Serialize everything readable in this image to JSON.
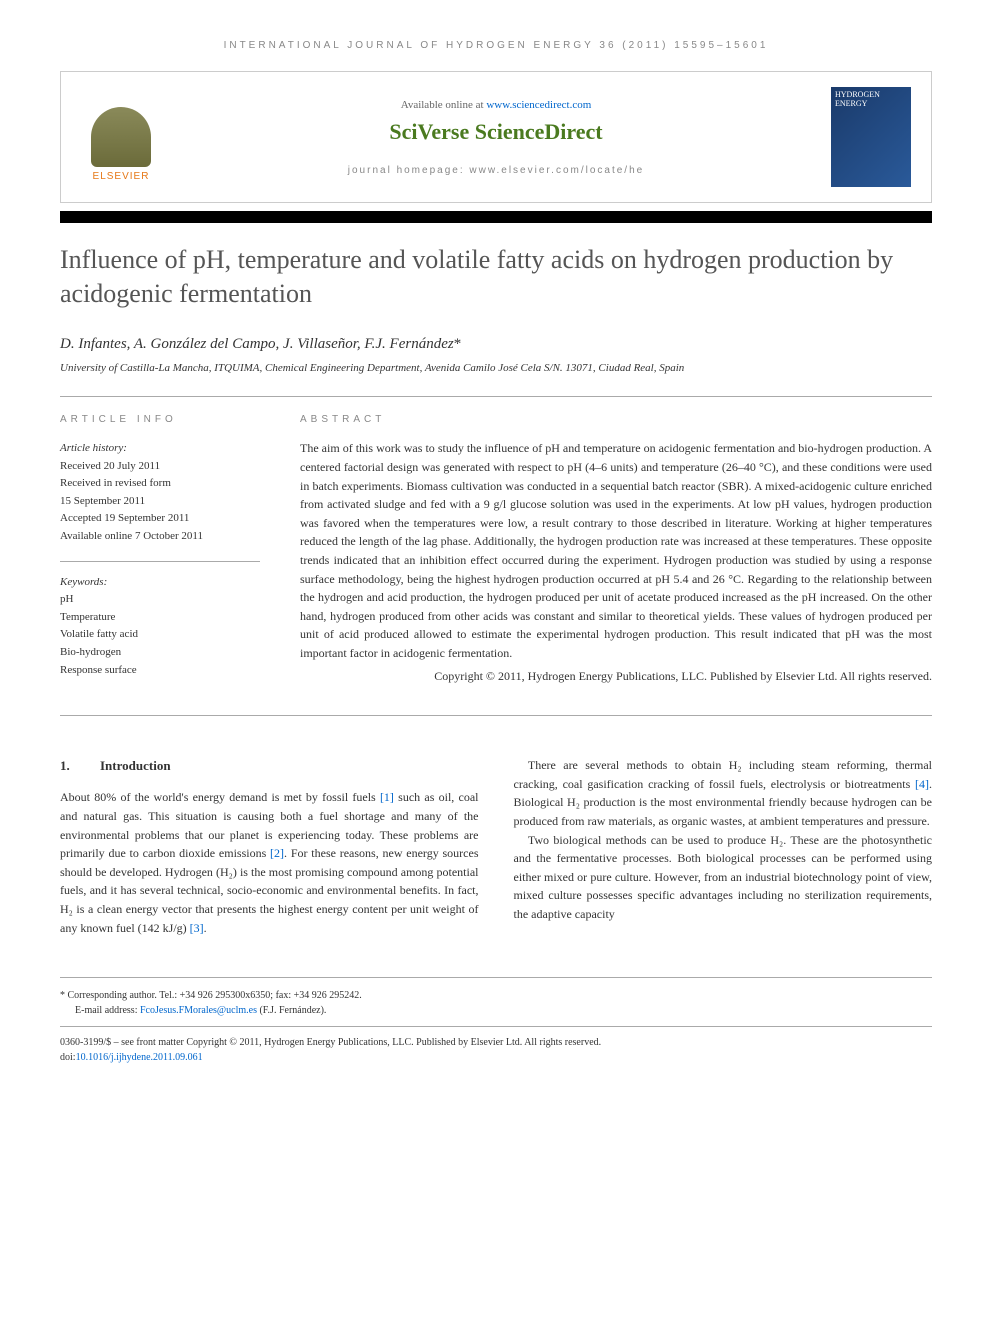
{
  "running_header": "INTERNATIONAL JOURNAL OF HYDROGEN ENERGY 36 (2011) 15595–15601",
  "header": {
    "available_prefix": "Available online at ",
    "available_link": "www.sciencedirect.com",
    "logo_text": "SciVerse ScienceDirect",
    "homepage_label": "journal homepage: www.elsevier.com/locate/he",
    "elsevier_label": "ELSEVIER",
    "cover_title": "HYDROGEN ENERGY"
  },
  "title": "Influence of pH, temperature and volatile fatty acids on hydrogen production by acidogenic fermentation",
  "authors": "D. Infantes, A. González del Campo, J. Villaseñor, F.J. Fernández",
  "corresponding_marker": "*",
  "affiliation": "University of Castilla-La Mancha, ITQUIMA, Chemical Engineering Department, Avenida Camilo José Cela S/N. 13071, Ciudad Real, Spain",
  "article_info": {
    "label": "ARTICLE INFO",
    "history_head": "Article history:",
    "received": "Received 20 July 2011",
    "revised_1": "Received in revised form",
    "revised_2": "15 September 2011",
    "accepted": "Accepted 19 September 2011",
    "online": "Available online 7 October 2011",
    "keywords_head": "Keywords:",
    "keywords": [
      "pH",
      "Temperature",
      "Volatile fatty acid",
      "Bio-hydrogen",
      "Response surface"
    ]
  },
  "abstract": {
    "label": "ABSTRACT",
    "text": "The aim of this work was to study the influence of pH and temperature on acidogenic fermentation and bio-hydrogen production. A centered factorial design was generated with respect to pH (4–6 units) and temperature (26–40 °C), and these conditions were used in batch experiments. Biomass cultivation was conducted in a sequential batch reactor (SBR). A mixed-acidogenic culture enriched from activated sludge and fed with a 9 g/l glucose solution was used in the experiments. At low pH values, hydrogen production was favored when the temperatures were low, a result contrary to those described in literature. Working at higher temperatures reduced the length of the lag phase. Additionally, the hydrogen production rate was increased at these temperatures. These opposite trends indicated that an inhibition effect occurred during the experiment. Hydrogen production was studied by using a response surface methodology, being the highest hydrogen production occurred at pH 5.4 and 26 °C. Regarding to the relationship between the hydrogen and acid production, the hydrogen produced per unit of acetate produced increased as the pH increased. On the other hand, hydrogen produced from other acids was constant and similar to theoretical yields. These values of hydrogen produced per unit of acid produced allowed to estimate the experimental hydrogen production. This result indicated that pH was the most important factor in acidogenic fermentation.",
    "copyright": "Copyright © 2011, Hydrogen Energy Publications, LLC. Published by Elsevier Ltd. All rights reserved."
  },
  "body": {
    "section_number": "1.",
    "section_title": "Introduction",
    "col1_p1_a": "About 80% of the world's energy demand is met by fossil fuels ",
    "ref1": "[1]",
    "col1_p1_b": " such as oil, coal and natural gas. This situation is causing both a fuel shortage and many of the environmental problems that our planet is experiencing today. These problems are primarily due to carbon dioxide emissions ",
    "ref2": "[2]",
    "col1_p1_c": ". For these reasons, new energy sources should be developed. Hydrogen (H₂) is the most promising compound among potential fuels, and it has several technical, socio-economic and environmental benefits. In fact, H₂ is a clean energy vector that presents the highest energy content per unit weight of any known fuel (142 kJ/g) ",
    "ref3": "[3]",
    "col1_p1_d": ".",
    "col2_p1_a": "There are several methods to obtain H₂ including steam reforming, thermal cracking, coal gasification cracking of fossil fuels, electrolysis or biotreatments ",
    "ref4": "[4]",
    "col2_p1_b": ". Biological H₂ production is the most environmental friendly because hydrogen can be produced from raw materials, as organic wastes, at ambient temperatures and pressure.",
    "col2_p2": "Two biological methods can be used to produce H₂. These are the photosynthetic and the fermentative processes. Both biological processes can be performed using either mixed or pure culture. However, from an industrial biotechnology point of view, mixed culture possesses specific advantages including no sterilization requirements, the adaptive capacity"
  },
  "footer": {
    "corresponding_label": "* Corresponding author.",
    "tel": " Tel.: +34 926 295300x6350; fax: +34 926 295242.",
    "email_label": "E-mail address: ",
    "email": "FcoJesus.FMorales@uclm.es",
    "email_suffix": " (F.J. Fernández).",
    "issn_line": "0360-3199/$ – see front matter Copyright © 2011, Hydrogen Energy Publications, LLC. Published by Elsevier Ltd. All rights reserved.",
    "doi_label": "doi:",
    "doi": "10.1016/j.ijhydene.2011.09.061"
  },
  "colors": {
    "link": "#0066cc",
    "elsevier_orange": "#e67817",
    "sciverse_green_dark": "#4a7a1f",
    "sciverse_green_light": "#8bb84f",
    "text_gray": "#555555",
    "rule_gray": "#aaaaaa"
  }
}
